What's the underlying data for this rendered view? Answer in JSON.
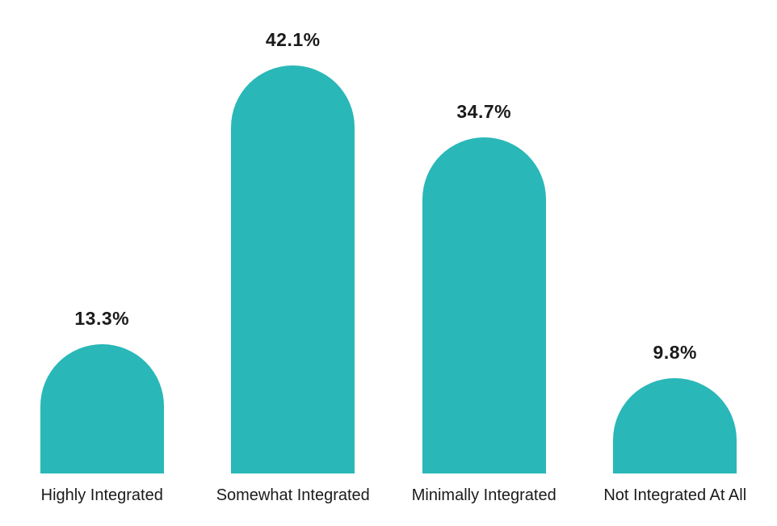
{
  "chart_data": {
    "type": "bar",
    "title": "",
    "xlabel": "",
    "ylabel": "",
    "categories": [
      "Highly Integrated",
      "Somewhat Integrated",
      "Minimally Integrated",
      "Not Integrated At All"
    ],
    "values": [
      13.3,
      42.1,
      34.7,
      9.8
    ],
    "value_labels": [
      "13.3%",
      "42.1%",
      "34.7%",
      "9.8%"
    ],
    "ylim": [
      0,
      45
    ],
    "grid": false,
    "legend": false,
    "bar_color": "#2ab7b8",
    "label_color": "#1b1b1b"
  }
}
